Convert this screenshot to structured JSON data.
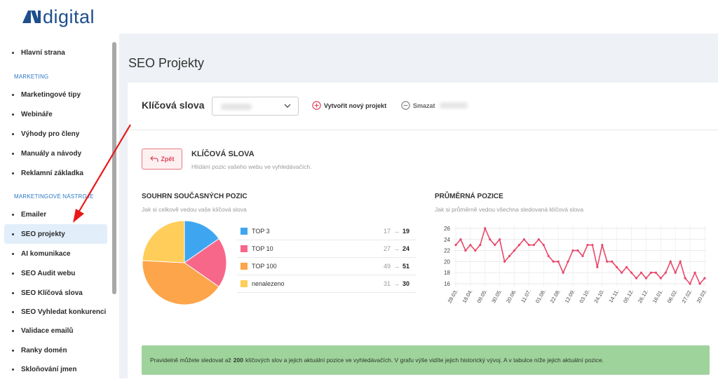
{
  "brand": {
    "name": "digital",
    "color": "#1e4e8c"
  },
  "sidebar": {
    "items": [
      {
        "label": "Hlavní strana"
      },
      {
        "label": "Marketingové tipy"
      },
      {
        "label": "Webináře"
      },
      {
        "label": "Výhody pro členy"
      },
      {
        "label": "Manuály a návody"
      },
      {
        "label": "Reklamní základka"
      },
      {
        "label": "Emailer"
      },
      {
        "label": "SEO projekty",
        "active": true
      },
      {
        "label": "AI komunikace"
      },
      {
        "label": "SEO Audit webu"
      },
      {
        "label": "SEO Klíčová slova"
      },
      {
        "label": "SEO Vyhledat konkurenci"
      },
      {
        "label": "Validace emailů"
      },
      {
        "label": "Ranky domén"
      },
      {
        "label": "Skloňování jmen"
      }
    ],
    "sections": [
      "MARKETING",
      "MARKETINGOVÉ NÁSTROJE"
    ]
  },
  "page": {
    "title": "SEO Projekty"
  },
  "toolbar": {
    "keywords_label": "Klíčová slova",
    "new_project_label": "Vytvořit nový projekt",
    "delete_label": "Smazat"
  },
  "section": {
    "back_label": "Zpět",
    "title": "KLÍČOVÁ SLOVA",
    "subtitle": "Hlídání pozic vašeho webu ve vyhledávačích."
  },
  "summary": {
    "title": "SOUHRN SOUČASNÝCH POZIC",
    "subtitle": "Jak si celkově vedou vaše klíčová slova",
    "rows": [
      {
        "label": "TOP 3",
        "old": "17",
        "new": "19",
        "color": "#3ea6f0"
      },
      {
        "label": "TOP 10",
        "old": "27",
        "new": "24",
        "color": "#f7678a"
      },
      {
        "label": "TOP 100",
        "old": "49",
        "new": "51",
        "color": "#fda54a"
      },
      {
        "label": "nenalezeno",
        "old": "31",
        "new": "30",
        "color": "#ffcd5a"
      }
    ],
    "arrow": "→"
  },
  "average": {
    "title": "PRŮMĚRNÁ POZICE",
    "subtitle": "Jak si průměrně vedou všechna sledovaná klíčová slova"
  },
  "banner": {
    "prefix": "Pravidelně můžete sledovat až",
    "highlight": "200",
    "suffix": "klíčových slov a jejich aktuální pozice ve vyhledávačích. V grafu výše vidíte jejich historický vývoj. A v tabulce níže jejich aktuální pozice."
  },
  "chart_data": [
    {
      "type": "pie",
      "categories": [
        "TOP 3",
        "TOP 10",
        "TOP 100",
        "nenalezeno"
      ],
      "values": [
        19,
        24,
        51,
        30
      ],
      "colors": [
        "#3ea6f0",
        "#f7678a",
        "#fda54a",
        "#ffcd5a"
      ]
    },
    {
      "type": "line",
      "title": "PRŮMĚRNÁ POZICE",
      "x_ticks": [
        "28.03.",
        "18.04.",
        "09.05.",
        "30.05.",
        "20.06.",
        "11.07.",
        "01.08.",
        "22.08.",
        "12.09.",
        "03.10.",
        "24.10.",
        "14.11.",
        "05.12.",
        "26.12.",
        "16.01.",
        "06.02.",
        "27.02.",
        "20.03."
      ],
      "y_ticks": [
        16,
        18,
        20,
        22,
        24,
        26
      ],
      "ylim": [
        15.5,
        26.5
      ],
      "grid": true,
      "color": "#e8486a",
      "series": [
        {
          "values": [
            23,
            24,
            22,
            23,
            22,
            23,
            26,
            24,
            23,
            24,
            20,
            21,
            22,
            23,
            24,
            23,
            23,
            24,
            23,
            21,
            20,
            20,
            18,
            20,
            22,
            22,
            21,
            23,
            23,
            19,
            23,
            20,
            20,
            19,
            18,
            19,
            18,
            17,
            18,
            17,
            18,
            18,
            17,
            18,
            20,
            18,
            20,
            17,
            16,
            18,
            16,
            17
          ]
        }
      ]
    }
  ]
}
